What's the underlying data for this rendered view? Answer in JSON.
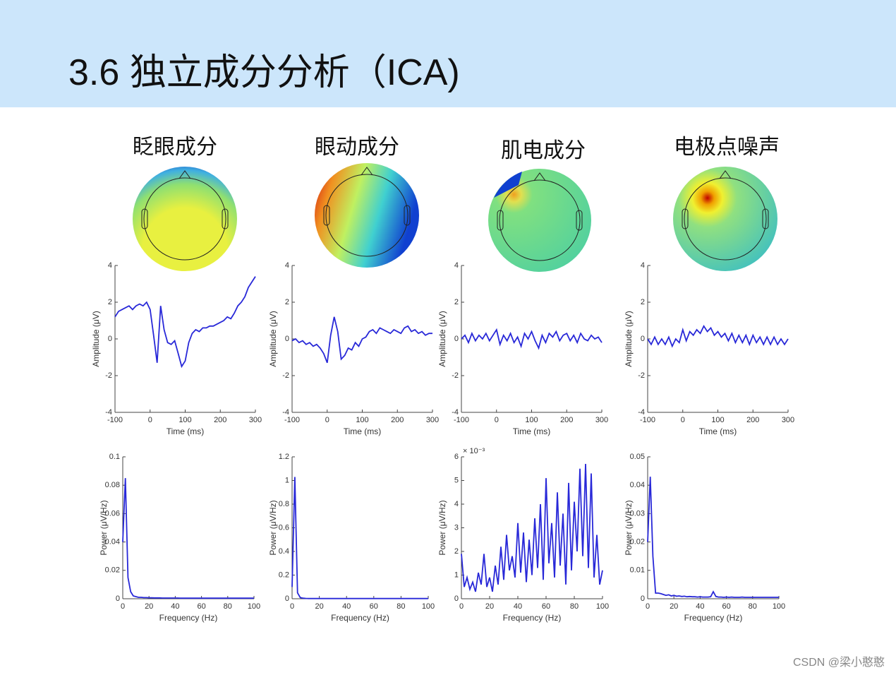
{
  "header": {
    "title": "3.6 独立成分分析（ICA)"
  },
  "columns": [
    "眨眼成分",
    "眼动成分",
    "肌电成分",
    "电极点噪声"
  ],
  "watermark": "CSDN @梁小憨憨",
  "chart_data": [
    {
      "type": "line",
      "xlabel": "Time (ms)",
      "ylabel": "Amplitude (μV)",
      "xlim": [
        -100,
        300
      ],
      "ylim": [
        -4,
        4
      ],
      "xticks": [
        -100,
        0,
        100,
        200,
        300
      ],
      "yticks": [
        -4,
        -2,
        0,
        2,
        4
      ],
      "x": [
        -100,
        -90,
        -80,
        -70,
        -60,
        -50,
        -40,
        -30,
        -20,
        -10,
        0,
        10,
        20,
        30,
        40,
        50,
        60,
        70,
        80,
        90,
        100,
        110,
        120,
        130,
        140,
        150,
        160,
        170,
        180,
        190,
        200,
        210,
        220,
        230,
        240,
        250,
        260,
        270,
        280,
        290,
        300
      ],
      "series": [
        {
          "color": "#2828d8",
          "values": [
            1.2,
            1.5,
            1.6,
            1.7,
            1.8,
            1.6,
            1.8,
            1.9,
            1.8,
            2.0,
            1.6,
            0.2,
            -1.3,
            1.8,
            0.5,
            -0.2,
            -0.3,
            -0.1,
            -0.8,
            -1.5,
            -1.2,
            -0.2,
            0.3,
            0.5,
            0.4,
            0.6,
            0.6,
            0.7,
            0.7,
            0.8,
            0.9,
            1.0,
            1.2,
            1.1,
            1.4,
            1.8,
            2.0,
            2.3,
            2.8,
            3.1,
            3.4
          ]
        }
      ]
    },
    {
      "type": "line",
      "xlabel": "Time (ms)",
      "ylabel": "Amplitude (μV)",
      "xlim": [
        -100,
        300
      ],
      "ylim": [
        -4,
        4
      ],
      "xticks": [
        -100,
        0,
        100,
        200,
        300
      ],
      "yticks": [
        -4,
        -2,
        0,
        2,
        4
      ],
      "x": [
        -100,
        -90,
        -80,
        -70,
        -60,
        -50,
        -40,
        -30,
        -20,
        -10,
        0,
        10,
        20,
        30,
        40,
        50,
        60,
        70,
        80,
        90,
        100,
        110,
        120,
        130,
        140,
        150,
        160,
        170,
        180,
        190,
        200,
        210,
        220,
        230,
        240,
        250,
        260,
        270,
        280,
        290,
        300
      ],
      "series": [
        {
          "color": "#2828d8",
          "values": [
            -0.1,
            0,
            -0.2,
            -0.1,
            -0.3,
            -0.2,
            -0.4,
            -0.3,
            -0.5,
            -0.8,
            -1.3,
            0.2,
            1.2,
            0.4,
            -1.1,
            -0.9,
            -0.5,
            -0.6,
            -0.2,
            -0.4,
            0,
            0.1,
            0.4,
            0.5,
            0.3,
            0.6,
            0.5,
            0.4,
            0.3,
            0.5,
            0.4,
            0.3,
            0.6,
            0.7,
            0.4,
            0.5,
            0.3,
            0.4,
            0.2,
            0.3,
            0.3
          ]
        }
      ]
    },
    {
      "type": "line",
      "xlabel": "Time (ms)",
      "ylabel": "Amplitude (μV)",
      "xlim": [
        -100,
        300
      ],
      "ylim": [
        -4,
        4
      ],
      "xticks": [
        -100,
        0,
        100,
        200,
        300
      ],
      "yticks": [
        -4,
        -2,
        0,
        2,
        4
      ],
      "x": [
        -100,
        -90,
        -80,
        -70,
        -60,
        -50,
        -40,
        -30,
        -20,
        -10,
        0,
        10,
        20,
        30,
        40,
        50,
        60,
        70,
        80,
        90,
        100,
        110,
        120,
        130,
        140,
        150,
        160,
        170,
        180,
        190,
        200,
        210,
        220,
        230,
        240,
        250,
        260,
        270,
        280,
        290,
        300
      ],
      "series": [
        {
          "color": "#2828d8",
          "values": [
            0,
            0.2,
            -0.2,
            0.3,
            -0.1,
            0.2,
            0,
            0.3,
            -0.1,
            0.2,
            0.5,
            -0.3,
            0.2,
            -0.1,
            0.3,
            -0.2,
            0.1,
            -0.4,
            0.3,
            0,
            0.4,
            -0.1,
            -0.5,
            0.2,
            -0.2,
            0.3,
            0.1,
            0.4,
            -0.1,
            0.2,
            0.3,
            -0.1,
            0.2,
            -0.2,
            0.3,
            0,
            -0.1,
            0.2,
            0,
            0.1,
            -0.2
          ]
        }
      ]
    },
    {
      "type": "line",
      "xlabel": "Time (ms)",
      "ylabel": "Amplitude (μV)",
      "xlim": [
        -100,
        300
      ],
      "ylim": [
        -4,
        4
      ],
      "xticks": [
        -100,
        0,
        100,
        200,
        300
      ],
      "yticks": [
        -4,
        -2,
        0,
        2,
        4
      ],
      "x": [
        -100,
        -90,
        -80,
        -70,
        -60,
        -50,
        -40,
        -30,
        -20,
        -10,
        0,
        10,
        20,
        30,
        40,
        50,
        60,
        70,
        80,
        90,
        100,
        110,
        120,
        130,
        140,
        150,
        160,
        170,
        180,
        190,
        200,
        210,
        220,
        230,
        240,
        250,
        260,
        270,
        280,
        290,
        300
      ],
      "series": [
        {
          "color": "#2828d8",
          "values": [
            0,
            -0.3,
            0.1,
            -0.3,
            0,
            -0.3,
            0.1,
            -0.4,
            0,
            -0.2,
            0.5,
            -0.1,
            0.4,
            0.2,
            0.5,
            0.3,
            0.7,
            0.4,
            0.6,
            0.2,
            0.4,
            0.1,
            0.3,
            -0.1,
            0.3,
            -0.2,
            0.2,
            -0.2,
            0.2,
            -0.3,
            0.2,
            -0.2,
            0.1,
            -0.3,
            0.1,
            -0.3,
            0.1,
            -0.3,
            0,
            -0.3,
            0
          ]
        }
      ]
    },
    {
      "type": "line",
      "xlabel": "Frequency (Hz)",
      "ylabel": "Power (μV/Hz)",
      "xlim": [
        0,
        100
      ],
      "ylim": [
        0,
        0.1
      ],
      "xticks": [
        0,
        20,
        40,
        60,
        80,
        100
      ],
      "yticks": [
        0,
        0.02,
        0.04,
        0.06,
        0.08,
        0.1
      ],
      "x": [
        0,
        2,
        4,
        6,
        8,
        10,
        12,
        14,
        16,
        18,
        20,
        22,
        24,
        26,
        28,
        30,
        32,
        34,
        36,
        38,
        40,
        42,
        44,
        46,
        48,
        50,
        52,
        54,
        56,
        58,
        60,
        62,
        64,
        66,
        68,
        70,
        72,
        74,
        76,
        78,
        80,
        82,
        84,
        86,
        88,
        90,
        92,
        94,
        96,
        98,
        100
      ],
      "series": [
        {
          "color": "#2828d8",
          "values": [
            0.04,
            0.085,
            0.015,
            0.005,
            0.002,
            0.0015,
            0.001,
            0.001,
            0.0008,
            0.0008,
            0.0007,
            0.0007,
            0.0006,
            0.0006,
            0.0006,
            0.0005,
            0.0005,
            0.0005,
            0.0005,
            0.0005,
            0.0005,
            0.0005,
            0.0004,
            0.0004,
            0.0004,
            0.0004,
            0.0004,
            0.0004,
            0.0004,
            0.0004,
            0.0004,
            0.0004,
            0.0004,
            0.0004,
            0.0004,
            0.0004,
            0.0004,
            0.0004,
            0.0004,
            0.0004,
            0.0004,
            0.0004,
            0.0004,
            0.0004,
            0.0004,
            0.0004,
            0.0004,
            0.0004,
            0.0004,
            0.0004,
            0.0004
          ]
        }
      ]
    },
    {
      "type": "line",
      "xlabel": "Frequency (Hz)",
      "ylabel": "Power (μV/Hz)",
      "xlim": [
        0,
        100
      ],
      "ylim": [
        0,
        1.2
      ],
      "xticks": [
        0,
        20,
        40,
        60,
        80,
        100
      ],
      "yticks": [
        0,
        0.2,
        0.4,
        0.6,
        0.8,
        1,
        1.2
      ],
      "x": [
        0,
        2,
        4,
        6,
        8,
        10,
        12,
        14,
        16,
        18,
        20,
        22,
        24,
        26,
        28,
        30,
        32,
        34,
        36,
        38,
        40,
        42,
        44,
        46,
        48,
        50,
        52,
        54,
        56,
        58,
        60,
        62,
        64,
        66,
        68,
        70,
        72,
        74,
        76,
        78,
        80,
        82,
        84,
        86,
        88,
        90,
        92,
        94,
        96,
        98,
        100
      ],
      "series": [
        {
          "color": "#2828d8",
          "values": [
            0.1,
            1.03,
            0.05,
            0.01,
            0.005,
            0.003,
            0.002,
            0.002,
            0.002,
            0.002,
            0.002,
            0.002,
            0.002,
            0.002,
            0.002,
            0.002,
            0.002,
            0.002,
            0.002,
            0.002,
            0.002,
            0.002,
            0.002,
            0.002,
            0.002,
            0.002,
            0.002,
            0.002,
            0.002,
            0.002,
            0.002,
            0.002,
            0.002,
            0.002,
            0.002,
            0.002,
            0.002,
            0.002,
            0.002,
            0.002,
            0.002,
            0.002,
            0.002,
            0.002,
            0.002,
            0.002,
            0.002,
            0.002,
            0.002,
            0.002,
            0.002
          ]
        }
      ]
    },
    {
      "type": "line",
      "xlabel": "Frequency (Hz)",
      "ylabel": "Power (μV/Hz)",
      "y_multiplier": "× 10⁻³",
      "xlim": [
        0,
        100
      ],
      "ylim": [
        0,
        0.006
      ],
      "xticks": [
        0,
        20,
        40,
        60,
        80,
        100
      ],
      "yticks": [
        0,
        {
          "value": 0.001,
          "label": "1"
        },
        {
          "value": 0.002,
          "label": "2"
        },
        {
          "value": 0.003,
          "label": "3"
        },
        {
          "value": 0.004,
          "label": "4"
        },
        {
          "value": 0.005,
          "label": "5"
        },
        {
          "value": 0.006,
          "label": "6"
        }
      ],
      "x": [
        0,
        2,
        4,
        6,
        8,
        10,
        12,
        14,
        16,
        18,
        20,
        22,
        24,
        26,
        28,
        30,
        32,
        34,
        36,
        38,
        40,
        42,
        44,
        46,
        48,
        50,
        52,
        54,
        56,
        58,
        60,
        62,
        64,
        66,
        68,
        70,
        72,
        74,
        76,
        78,
        80,
        82,
        84,
        86,
        88,
        90,
        92,
        94,
        96,
        98,
        100
      ],
      "series": [
        {
          "color": "#2828d8",
          "values": [
            0.0019,
            0.0005,
            0.0009,
            0.0004,
            0.0007,
            0.0003,
            0.0011,
            0.0006,
            0.0019,
            0.0005,
            0.0009,
            0.0003,
            0.0014,
            0.0006,
            0.0022,
            0.0008,
            0.0027,
            0.0012,
            0.0018,
            0.0009,
            0.0032,
            0.0011,
            0.0028,
            0.0007,
            0.0025,
            0.001,
            0.0034,
            0.0013,
            0.004,
            0.0008,
            0.0051,
            0.0015,
            0.0032,
            0.0009,
            0.0045,
            0.0014,
            0.0036,
            0.0006,
            0.0049,
            0.0012,
            0.0041,
            0.002,
            0.0055,
            0.0018,
            0.0057,
            0.0013,
            0.0053,
            0.0009,
            0.0027,
            0.0006,
            0.0012
          ]
        }
      ]
    },
    {
      "type": "line",
      "xlabel": "Frequency (Hz)",
      "ylabel": "Power (μV/Hz)",
      "xlim": [
        0,
        100
      ],
      "ylim": [
        0,
        0.05
      ],
      "xticks": [
        0,
        20,
        40,
        60,
        80,
        100
      ],
      "yticks": [
        0,
        0.01,
        0.02,
        0.03,
        0.04,
        0.05
      ],
      "x": [
        0,
        2,
        4,
        6,
        8,
        10,
        12,
        14,
        16,
        18,
        20,
        22,
        24,
        26,
        28,
        30,
        32,
        34,
        36,
        38,
        40,
        42,
        44,
        46,
        48,
        50,
        52,
        54,
        56,
        58,
        60,
        62,
        64,
        66,
        68,
        70,
        72,
        74,
        76,
        78,
        80,
        82,
        84,
        86,
        88,
        90,
        92,
        94,
        96,
        98,
        100
      ],
      "series": [
        {
          "color": "#2828d8",
          "values": [
            0.02,
            0.043,
            0.015,
            0.002,
            0.002,
            0.0018,
            0.0015,
            0.0012,
            0.0014,
            0.001,
            0.0012,
            0.0009,
            0.001,
            0.0008,
            0.0009,
            0.0007,
            0.0008,
            0.0007,
            0.0007,
            0.0006,
            0.0007,
            0.0006,
            0.0006,
            0.0006,
            0.0007,
            0.0025,
            0.0008,
            0.0006,
            0.0006,
            0.0005,
            0.0006,
            0.0005,
            0.0006,
            0.0005,
            0.0005,
            0.0005,
            0.0006,
            0.0005,
            0.0005,
            0.0005,
            0.0005,
            0.0005,
            0.0005,
            0.0005,
            0.0005,
            0.0005,
            0.0005,
            0.0005,
            0.0005,
            0.0005,
            0.0005
          ]
        }
      ]
    }
  ]
}
